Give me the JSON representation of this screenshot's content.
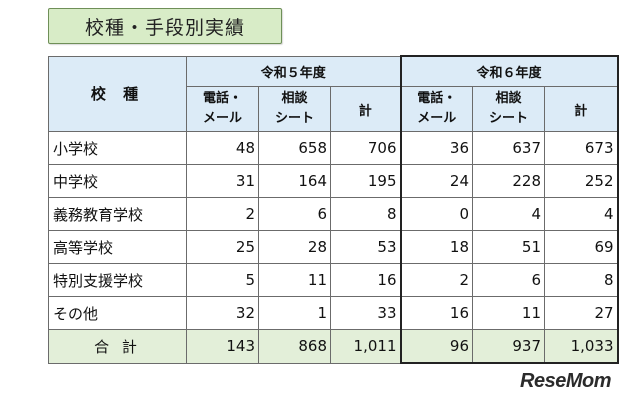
{
  "title": "校種・手段別実績",
  "table": {
    "school_header": "校 種",
    "groups": [
      "令和５年度",
      "令和６年度"
    ],
    "subheaders": [
      {
        "line1": "電話・",
        "line2": "メール"
      },
      {
        "line1": "相談",
        "line2": "シート"
      },
      {
        "line1": "計",
        "line2": ""
      },
      {
        "line1": "電話・",
        "line2": "メール"
      },
      {
        "line1": "相談",
        "line2": "シート"
      },
      {
        "line1": "計",
        "line2": ""
      }
    ],
    "rows": [
      {
        "name": "小学校",
        "values": [
          "48",
          "658",
          "706",
          "36",
          "637",
          "673"
        ]
      },
      {
        "name": "中学校",
        "values": [
          "31",
          "164",
          "195",
          "24",
          "228",
          "252"
        ]
      },
      {
        "name": "義務教育学校",
        "values": [
          "2",
          "6",
          "8",
          "0",
          "4",
          "4"
        ]
      },
      {
        "name": "高等学校",
        "values": [
          "25",
          "28",
          "53",
          "18",
          "51",
          "69"
        ]
      },
      {
        "name": "特別支援学校",
        "values": [
          "5",
          "11",
          "16",
          "2",
          "6",
          "8"
        ]
      },
      {
        "name": "その他",
        "values": [
          "32",
          "1",
          "33",
          "16",
          "11",
          "27"
        ]
      }
    ],
    "total": {
      "name": "合 計",
      "values": [
        "143",
        "868",
        "1,011",
        "96",
        "937",
        "1,033"
      ]
    }
  },
  "watermark": "ReseMom"
}
